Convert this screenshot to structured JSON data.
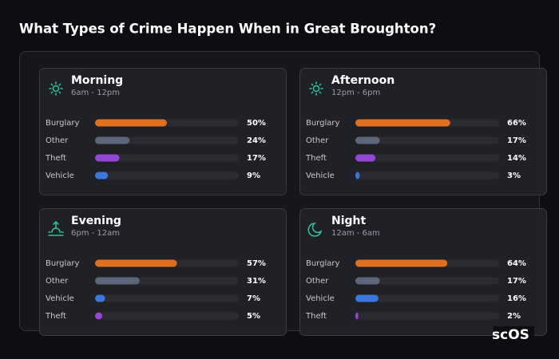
{
  "title": "What Types of Crime Happen When in Great Broughton?",
  "logo": "scOS",
  "chart_data": [
    {
      "type": "bar",
      "title": "Morning",
      "subtitle": "6am - 12pm",
      "categories": [
        "Burglary",
        "Other",
        "Theft",
        "Vehicle"
      ],
      "values": [
        50,
        24,
        17,
        9
      ],
      "value_labels": [
        "50%",
        "24%",
        "17%",
        "9%"
      ],
      "colors": [
        "#e0701f",
        "#5d6678",
        "#9446d4",
        "#3a78dc"
      ],
      "xlim": [
        0,
        100
      ]
    },
    {
      "type": "bar",
      "title": "Afternoon",
      "subtitle": "12pm - 6pm",
      "categories": [
        "Burglary",
        "Other",
        "Theft",
        "Vehicle"
      ],
      "values": [
        66,
        17,
        14,
        3
      ],
      "value_labels": [
        "66%",
        "17%",
        "14%",
        "3%"
      ],
      "colors": [
        "#e0701f",
        "#5d6678",
        "#9446d4",
        "#3a78dc"
      ],
      "xlim": [
        0,
        100
      ]
    },
    {
      "type": "bar",
      "title": "Evening",
      "subtitle": "6pm - 12am",
      "categories": [
        "Burglary",
        "Other",
        "Vehicle",
        "Theft"
      ],
      "values": [
        57,
        31,
        7,
        5
      ],
      "value_labels": [
        "57%",
        "31%",
        "7%",
        "5%"
      ],
      "colors": [
        "#e0701f",
        "#5d6678",
        "#3a78dc",
        "#9446d4"
      ],
      "xlim": [
        0,
        100
      ]
    },
    {
      "type": "bar",
      "title": "Night",
      "subtitle": "12am - 6am",
      "categories": [
        "Burglary",
        "Other",
        "Vehicle",
        "Theft"
      ],
      "values": [
        64,
        17,
        16,
        2
      ],
      "value_labels": [
        "64%",
        "17%",
        "16%",
        "2%"
      ],
      "colors": [
        "#e0701f",
        "#5d6678",
        "#3a78dc",
        "#9446d4"
      ],
      "xlim": [
        0,
        100
      ]
    }
  ]
}
